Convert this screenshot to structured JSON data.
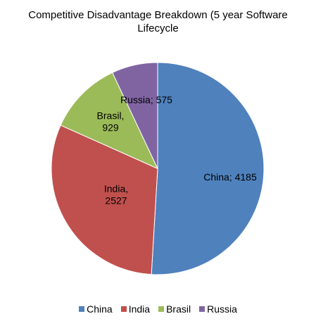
{
  "chart_data": {
    "type": "pie",
    "title_lines": [
      "Competitive Disadvantage Breakdown (5 year Software",
      "Lifecycle"
    ],
    "categories": [
      "China",
      "India",
      "Brasil",
      "Russia"
    ],
    "values": [
      4185,
      2527,
      929,
      575
    ],
    "colors": [
      "#4F81BD",
      "#C0504D",
      "#9BBB59",
      "#8064A2"
    ],
    "data_labels": [
      [
        "China; 4185"
      ],
      [
        "India,",
        "2527"
      ],
      [
        "Brasil,",
        "929"
      ],
      [
        "Russia; 575"
      ]
    ],
    "legend_position": "bottom"
  }
}
